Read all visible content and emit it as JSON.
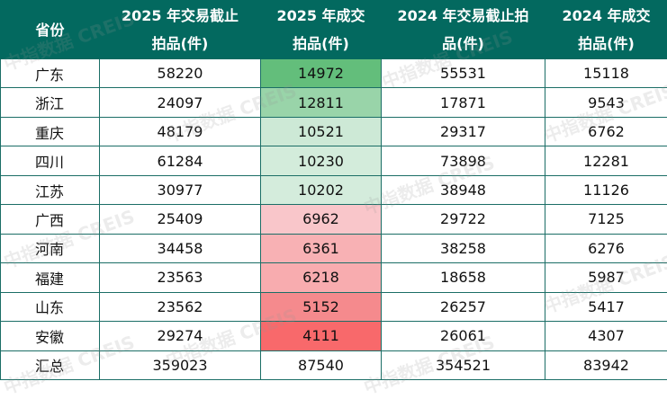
{
  "table": {
    "headers": [
      "省份",
      "2025 年交易截止拍品(件)",
      "2025 年成交拍品(件)",
      "2024 年交易截止拍品(件)",
      "2024 年成交拍品(件)"
    ],
    "header_lines": [
      [
        "省份"
      ],
      [
        "2025 年交易截止",
        "拍品(件)"
      ],
      [
        "2025 年成交",
        "拍品(件)"
      ],
      [
        "2024 年交易截止拍",
        "品(件)"
      ],
      [
        "2024 年成交",
        "拍品(件)"
      ]
    ],
    "rows": [
      {
        "province": "广东",
        "values": [
          "58220",
          "14972",
          "55531",
          "15118"
        ],
        "highlight": "#63be7b"
      },
      {
        "province": "浙江",
        "values": [
          "24097",
          "12811",
          "17871",
          "9543"
        ],
        "highlight": "#99d4a9"
      },
      {
        "province": "重庆",
        "values": [
          "48179",
          "10521",
          "29317",
          "6762"
        ],
        "highlight": "#cde9d6"
      },
      {
        "province": "四川",
        "values": [
          "61284",
          "10230",
          "73898",
          "12281"
        ],
        "highlight": "#d3ecdb"
      },
      {
        "province": "江苏",
        "values": [
          "30977",
          "10202",
          "38948",
          "11126"
        ],
        "highlight": "#d4ecdc"
      },
      {
        "province": "广西",
        "values": [
          "25409",
          "6962",
          "29722",
          "7125"
        ],
        "highlight": "#f9c6ca"
      },
      {
        "province": "河南",
        "values": [
          "34458",
          "6361",
          "38258",
          "6276"
        ],
        "highlight": "#f8b1b4"
      },
      {
        "province": "福建",
        "values": [
          "23563",
          "6218",
          "18658",
          "5987"
        ],
        "highlight": "#f8acaf"
      },
      {
        "province": "山东",
        "values": [
          "23562",
          "5152",
          "26257",
          "5417"
        ],
        "highlight": "#f58a8d"
      },
      {
        "province": "安徽",
        "values": [
          "29274",
          "4111",
          "26061",
          "4307"
        ],
        "highlight": "#f8696b"
      }
    ],
    "total": {
      "province": "汇总",
      "values": [
        "359023",
        "87540",
        "354521",
        "83942"
      ]
    }
  },
  "colors": {
    "header_bg": "#03695f",
    "header_text": "#ffffff",
    "border": "#1b6e66"
  },
  "watermark": "中指数据 CREIS",
  "chart_data": {
    "type": "table",
    "columns": [
      "省份",
      "2025 年交易截止拍品(件)",
      "2025 年成交拍品(件)",
      "2024 年交易截止拍品(件)",
      "2024 年成交拍品(件)"
    ],
    "rows": [
      [
        "广东",
        58220,
        14972,
        55531,
        15118
      ],
      [
        "浙江",
        24097,
        12811,
        17871,
        9543
      ],
      [
        "重庆",
        48179,
        10521,
        29317,
        6762
      ],
      [
        "四川",
        61284,
        10230,
        73898,
        12281
      ],
      [
        "江苏",
        30977,
        10202,
        38948,
        11126
      ],
      [
        "广西",
        25409,
        6962,
        29722,
        7125
      ],
      [
        "河南",
        34458,
        6361,
        38258,
        6276
      ],
      [
        "福建",
        23563,
        6218,
        18658,
        5987
      ],
      [
        "山东",
        23562,
        5152,
        26257,
        5417
      ],
      [
        "安徽",
        29274,
        4111,
        26061,
        4307
      ],
      [
        "汇总",
        359023,
        87540,
        354521,
        83942
      ]
    ]
  }
}
